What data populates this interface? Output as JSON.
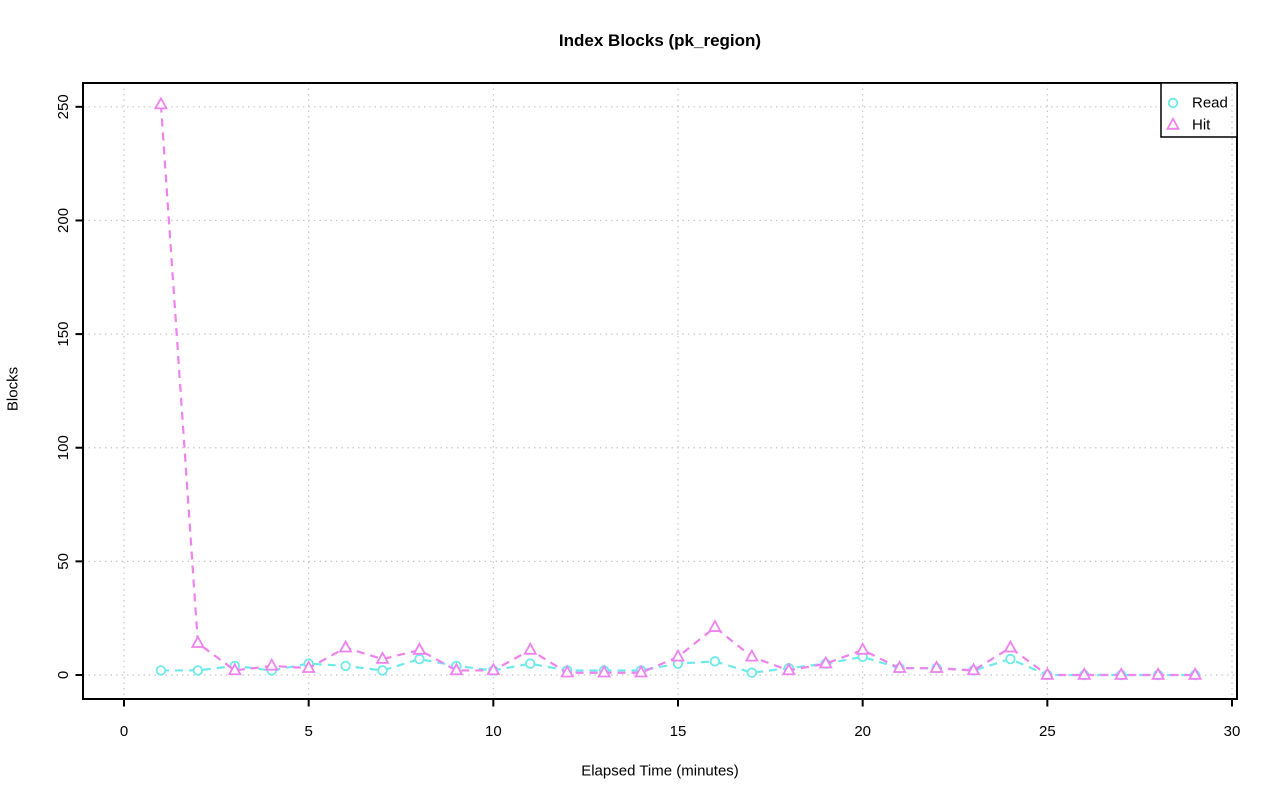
{
  "page": {
    "background": "#ffffff"
  },
  "chart_data": {
    "type": "line",
    "title": "Index Blocks (pk_region)",
    "xlabel": "Elapsed Time (minutes)",
    "ylabel": "Blocks",
    "x": [
      1,
      2,
      3,
      4,
      5,
      6,
      7,
      8,
      9,
      10,
      11,
      12,
      13,
      14,
      15,
      16,
      17,
      18,
      19,
      20,
      21,
      22,
      23,
      24,
      25,
      26,
      27,
      28,
      29
    ],
    "series": [
      {
        "name": "Read",
        "color": "#6fe9e9",
        "marker": "circle",
        "linestyle": "dashed",
        "values": [
          2,
          2,
          4,
          2,
          5,
          4,
          2,
          7,
          4,
          2,
          5,
          2,
          2,
          2,
          5,
          6,
          1,
          3,
          5,
          8,
          3,
          3,
          2,
          7,
          0,
          0,
          0,
          0,
          0
        ]
      },
      {
        "name": "Hit",
        "color": "#ee82ee",
        "marker": "triangle",
        "linestyle": "dashed",
        "values": [
          251,
          14,
          2,
          4,
          3,
          12,
          7,
          11,
          2,
          2,
          11,
          1,
          1,
          1,
          8,
          21,
          8,
          2,
          5,
          11,
          3,
          3,
          2,
          12,
          0,
          0,
          0,
          0,
          0
        ]
      }
    ],
    "xticks": [
      0,
      5,
      10,
      15,
      20,
      25,
      30
    ],
    "yticks": [
      0,
      50,
      100,
      150,
      200,
      250
    ],
    "xlim": [
      0,
      30
    ],
    "ylim": [
      0,
      251
    ],
    "grid": "dotted",
    "grid_color": "#c8c8c8",
    "axis_color": "#000000",
    "legend": {
      "position": "top-right",
      "items": [
        "Read",
        "Hit"
      ]
    }
  }
}
